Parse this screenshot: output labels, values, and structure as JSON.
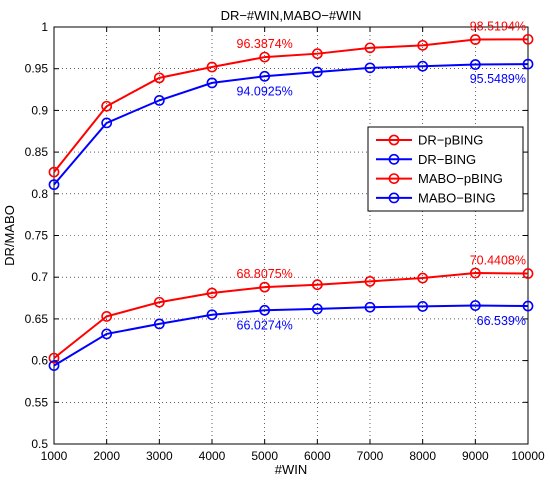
{
  "chart_data": {
    "type": "line",
    "title": "DR−#WIN,MABO−#WIN",
    "xlabel": "#WIN",
    "ylabel": "DR/MABO",
    "x": [
      1000,
      2000,
      3000,
      4000,
      5000,
      6000,
      7000,
      8000,
      9000,
      10000
    ],
    "xlim": [
      1000,
      10000
    ],
    "ylim": [
      0.5,
      1.0
    ],
    "xticks": [
      1000,
      2000,
      3000,
      4000,
      5000,
      6000,
      7000,
      8000,
      9000,
      10000
    ],
    "yticks": [
      0.5,
      0.55,
      0.6,
      0.65,
      0.7,
      0.75,
      0.8,
      0.85,
      0.9,
      0.95,
      1
    ],
    "xtick_labels": [
      "1000",
      "2000",
      "3000",
      "4000",
      "5000",
      "6000",
      "7000",
      "8000",
      "9000",
      "10000"
    ],
    "ytick_labels": [
      "0.5",
      "0.55",
      "0.6",
      "0.65",
      "0.7",
      "0.75",
      "0.8",
      "0.85",
      "0.9",
      "0.95",
      "1"
    ],
    "grid": true,
    "legend_position": "right-middle",
    "series": [
      {
        "name": "DR−pBING",
        "color": "#ff0000",
        "marker": "circle",
        "values": [
          0.826,
          0.905,
          0.939,
          0.952,
          0.9639,
          0.968,
          0.975,
          0.978,
          0.985,
          0.9852
        ]
      },
      {
        "name": "DR−BING",
        "color": "#0000ff",
        "marker": "circle",
        "values": [
          0.811,
          0.885,
          0.912,
          0.933,
          0.9409,
          0.946,
          0.951,
          0.953,
          0.955,
          0.9555
        ]
      },
      {
        "name": "MABO−pBING",
        "color": "#ff0000",
        "marker": "circle",
        "values": [
          0.603,
          0.653,
          0.67,
          0.681,
          0.6881,
          0.691,
          0.695,
          0.699,
          0.705,
          0.7044
        ]
      },
      {
        "name": "MABO−BING",
        "color": "#0000ff",
        "marker": "circle",
        "values": [
          0.594,
          0.632,
          0.644,
          0.655,
          0.6603,
          0.662,
          0.664,
          0.665,
          0.666,
          0.6654
        ]
      }
    ],
    "annotations": [
      {
        "text": "96.3874%",
        "x": 5000,
        "y": 0.9639,
        "color": "#ff0000",
        "position": "above"
      },
      {
        "text": "98.5194%",
        "x": 10000,
        "y": 0.9852,
        "color": "#ff0000",
        "position": "above"
      },
      {
        "text": "94.0925%",
        "x": 5000,
        "y": 0.9409,
        "color": "#0000ff",
        "position": "below"
      },
      {
        "text": "95.5489%",
        "x": 10000,
        "y": 0.9555,
        "color": "#0000ff",
        "position": "below"
      },
      {
        "text": "68.8075%",
        "x": 5000,
        "y": 0.6881,
        "color": "#ff0000",
        "position": "above"
      },
      {
        "text": "70.4408%",
        "x": 10000,
        "y": 0.7044,
        "color": "#ff0000",
        "position": "above"
      },
      {
        "text": "66.0274%",
        "x": 5000,
        "y": 0.6603,
        "color": "#0000ff",
        "position": "below"
      },
      {
        "text": "66.539%",
        "x": 10000,
        "y": 0.6654,
        "color": "#0000ff",
        "position": "below"
      }
    ]
  }
}
